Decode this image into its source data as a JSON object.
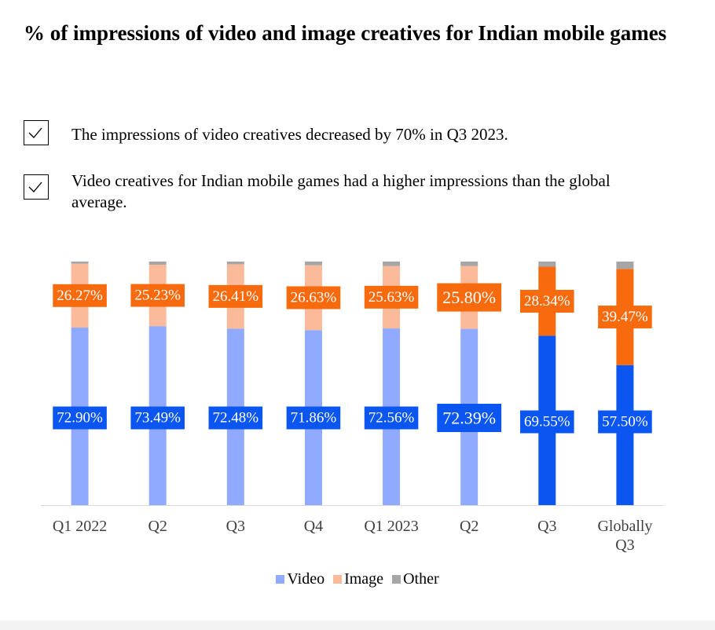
{
  "title": "% of impressions of video and image creatives for Indian mobile games",
  "checklist": [
    {
      "text": "The impressions of video creatives decreased by 70% in Q3 2023."
    },
    {
      "text": "Video creatives for Indian mobile games had a higher impressions than the global average."
    }
  ],
  "chart_data": {
    "type": "bar",
    "stacked": true,
    "categories": [
      "Q1 2022",
      "Q2",
      "Q3",
      "Q4",
      "Q1 2023",
      "Q2",
      "Q3",
      "Globally Q3"
    ],
    "series": [
      {
        "name": "Video",
        "values": [
          72.9,
          73.49,
          72.48,
          71.86,
          72.56,
          72.39,
          69.55,
          57.5
        ],
        "color": "#8faaff",
        "highlight_color": "#0b55f0"
      },
      {
        "name": "Image",
        "values": [
          26.27,
          25.23,
          26.41,
          26.63,
          25.63,
          25.8,
          28.34,
          39.47
        ],
        "color": "#fbbb9a",
        "highlight_color": "#f76a0d"
      },
      {
        "name": "Other",
        "values": [
          0.83,
          1.28,
          1.11,
          1.51,
          1.81,
          1.81,
          2.11,
          3.03
        ],
        "color": "#a6a6a6"
      }
    ],
    "labels_video": [
      "72.90%",
      "73.49%",
      "72.48%",
      "71.86%",
      "72.56%",
      "72.39%",
      "69.55%",
      "57.50%"
    ],
    "labels_image": [
      "26.27%",
      "25.23%",
      "26.41%",
      "26.63%",
      "25.63%",
      "25.80%",
      "28.34%",
      "39.47%"
    ],
    "label_colors": {
      "video": "#0b55f0",
      "image": "#f76a0d"
    },
    "highlighted_categories": [
      6,
      7
    ],
    "emphasized_categories": [
      5
    ],
    "ylim": [
      0,
      100
    ],
    "grid": false,
    "legend_position": "bottom"
  }
}
